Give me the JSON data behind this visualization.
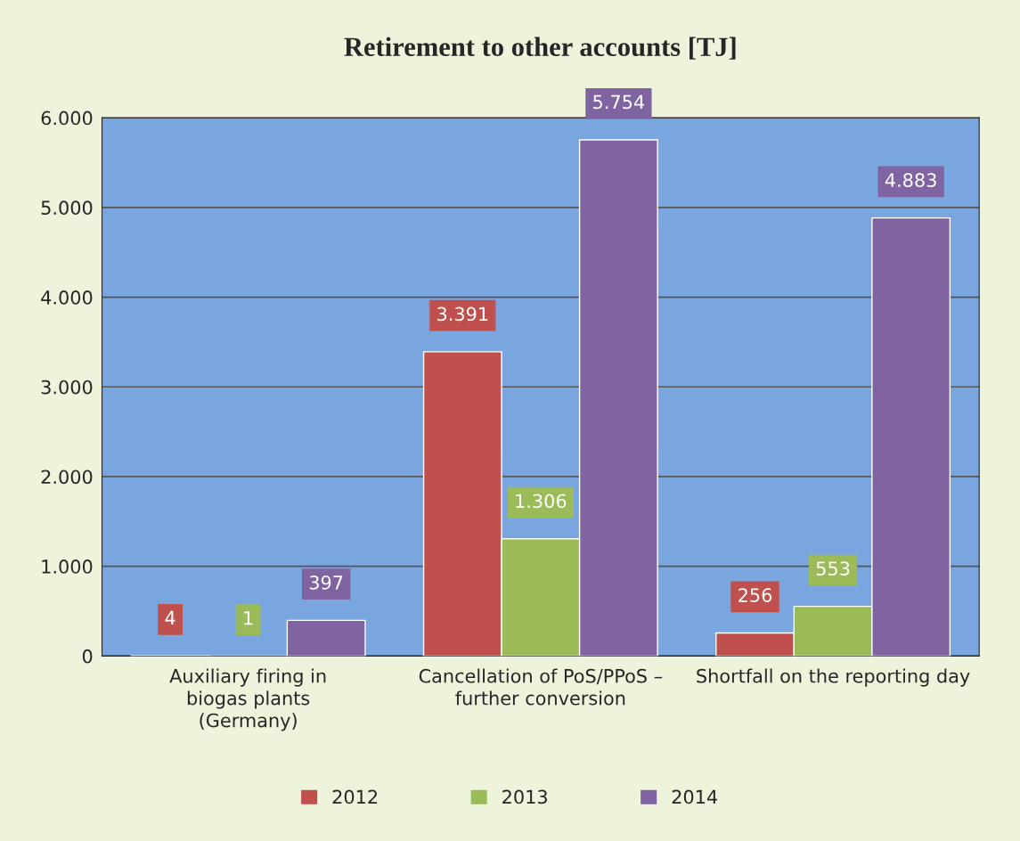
{
  "chart_data": {
    "type": "bar",
    "title": "Retirement to other accounts [TJ]",
    "categories": [
      "Auxiliary firing in biogas plants (Germany)",
      "Cancellation of PoS/PPoS – further conversion",
      "Shortfall on the reporting day"
    ],
    "series": [
      {
        "name": "2012",
        "color": "#c0504d",
        "values": [
          4,
          3391,
          256
        ],
        "value_labels": [
          "4",
          "3.391",
          "256"
        ]
      },
      {
        "name": "2013",
        "color": "#9bbb59",
        "values": [
          1,
          1306,
          553
        ],
        "value_labels": [
          "1",
          "1.306",
          "553"
        ]
      },
      {
        "name": "2014",
        "color": "#8064a2",
        "values": [
          397,
          5754,
          4883
        ],
        "value_labels": [
          "397",
          "5.754",
          "4.883"
        ]
      }
    ],
    "ylim": [
      0,
      6000
    ],
    "yticks": [
      {
        "value": 0,
        "label": "0"
      },
      {
        "value": 1000,
        "label": "1.000"
      },
      {
        "value": 2000,
        "label": "2.000"
      },
      {
        "value": 3000,
        "label": "3.000"
      },
      {
        "value": 4000,
        "label": "4.000"
      },
      {
        "value": 5000,
        "label": "5.000"
      },
      {
        "value": 6000,
        "label": "6.000"
      }
    ],
    "grid": "y",
    "legend": "bottom"
  }
}
